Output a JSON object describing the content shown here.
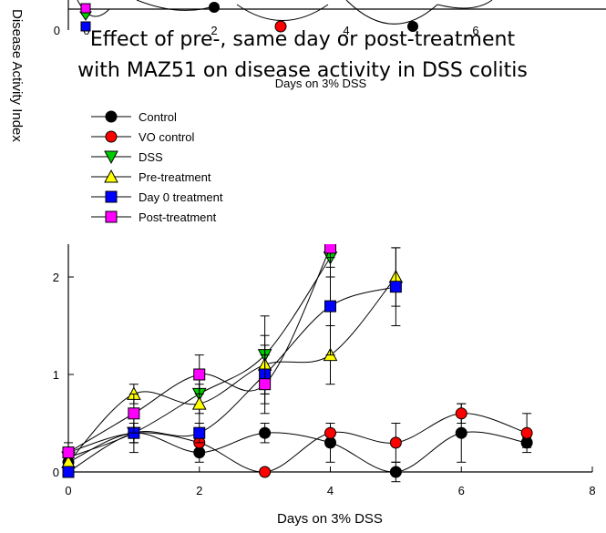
{
  "chart_data": [
    {
      "type": "line",
      "title": "",
      "xlabel": "Days on 3% DSS",
      "ylabel": "Disease Activity Index",
      "x_ticks": [
        "0",
        "2",
        "4",
        "6"
      ],
      "y_ticks": [
        "0"
      ],
      "note": "Partially visible chart, clipped at top of image"
    },
    {
      "type": "line",
      "title": "Effect of pre-, same day or post-treatment with MAZ51 on disease activity in DSS colitis",
      "title_lines": [
        "Effect of pre-, same day or post-treatment",
        "with MAZ51 on disease activity in DSS colitis"
      ],
      "xlabel": "Days on 3% DSS",
      "ylabel": "",
      "xlim": [
        0,
        8
      ],
      "ylim": [
        0,
        2.3
      ],
      "x_ticks": [
        "0",
        "2",
        "4",
        "6",
        "8"
      ],
      "y_ticks": [
        "0",
        "1",
        "2"
      ],
      "legend_position": "top-left",
      "series": [
        {
          "name": "Control",
          "marker": "circle",
          "color": "#000000",
          "x": [
            0,
            1,
            2,
            3,
            4,
            5,
            6,
            7
          ],
          "y": [
            0.1,
            0.4,
            0.2,
            0.4,
            0.3,
            0.0,
            0.4,
            0.3
          ],
          "err": [
            0.05,
            0.1,
            0.1,
            0.1,
            0.2,
            0.1,
            0.3,
            0.05
          ]
        },
        {
          "name": "VO control",
          "marker": "circle",
          "color": "#ff0000",
          "x": [
            0,
            1,
            2,
            3,
            4,
            5,
            6,
            7
          ],
          "y": [
            0.2,
            0.4,
            0.3,
            0.0,
            0.4,
            0.3,
            0.6,
            0.4
          ],
          "err": [
            0.1,
            0.1,
            0.1,
            0.0,
            0.1,
            0.2,
            0.1,
            0.2
          ]
        },
        {
          "name": "DSS",
          "marker": "triangle-down",
          "color": "#00cc00",
          "x": [
            0,
            1,
            2,
            3,
            4
          ],
          "y": [
            0.15,
            0.4,
            0.8,
            1.2,
            2.2
          ],
          "err": [
            0.05,
            0.1,
            0.2,
            0.4,
            0.2
          ]
        },
        {
          "name": "Pre-treatment",
          "marker": "triangle-up",
          "color": "#ffff00",
          "x": [
            0,
            1,
            2,
            3,
            4,
            5
          ],
          "y": [
            0.1,
            0.8,
            0.7,
            1.1,
            1.2,
            2.0
          ],
          "err": [
            0.05,
            0.1,
            0.2,
            0.3,
            0.3,
            0.3
          ]
        },
        {
          "name": "Day 0 treatment",
          "marker": "square",
          "color": "#0000ff",
          "x": [
            0,
            1,
            2,
            3,
            4,
            5
          ],
          "y": [
            0.0,
            0.4,
            0.4,
            1.0,
            1.7,
            1.9
          ],
          "err": [
            0.05,
            0.2,
            0.1,
            0.3,
            0.5,
            0.4
          ]
        },
        {
          "name": "Post-treatment",
          "marker": "square",
          "color": "#ff00ff",
          "x": [
            0,
            1,
            2,
            3,
            4
          ],
          "y": [
            0.2,
            0.6,
            1.0,
            0.9,
            2.3
          ],
          "err": [
            0.05,
            0.2,
            0.2,
            0.3,
            0.2
          ]
        }
      ]
    }
  ],
  "side_labels": {
    "top_axis_fragment": "ctivity Index"
  }
}
